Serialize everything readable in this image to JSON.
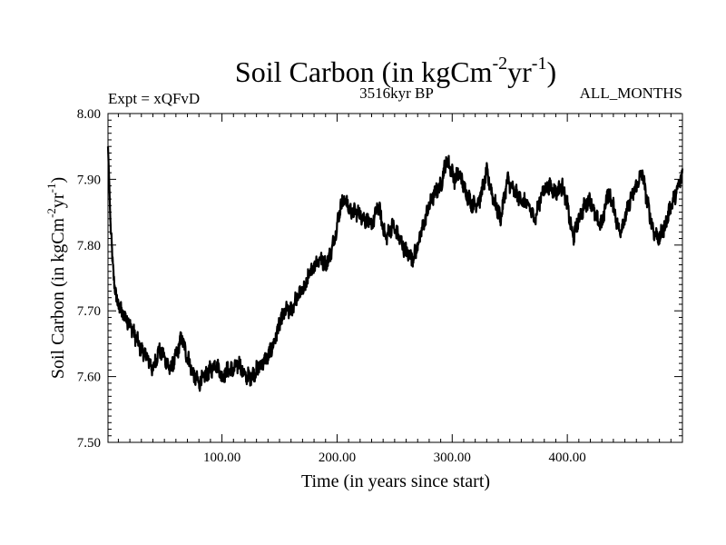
{
  "chart_data": {
    "type": "line",
    "title": "Soil Carbon (in kgCm",
    "title_sup1": "-2",
    "title_mid": "yr",
    "title_sup2": "-1",
    "title_end": ")",
    "left_annotation": "Expt = xQFvD",
    "center_annotation": "3516kyr BP",
    "right_annotation": "ALL_MONTHS",
    "xlabel": "Time (in years since start)",
    "ylabel": "Soil Carbon (in kgCm",
    "ylabel_sup1": "-2",
    "ylabel_mid": "yr",
    "ylabel_sup2": "-1",
    "ylabel_end": ")",
    "xlim": [
      1,
      500
    ],
    "ylim": [
      7.5,
      8.0
    ],
    "x_ticks": [
      100,
      200,
      300,
      400
    ],
    "x_tick_labels": [
      "100.00",
      "200.00",
      "300.00",
      "400.00"
    ],
    "y_ticks": [
      7.5,
      7.6,
      7.7,
      7.8,
      7.9,
      8.0
    ],
    "y_tick_labels": [
      "7.50",
      "7.60",
      "7.70",
      "7.80",
      "7.90",
      "8.00"
    ],
    "grid": false,
    "series": [
      {
        "name": "Soil Carbon",
        "color": "#000000",
        "x": [
          1,
          2,
          3,
          5,
          8,
          12,
          16,
          20,
          25,
          30,
          35,
          40,
          45,
          50,
          55,
          60,
          65,
          68,
          72,
          76,
          80,
          85,
          90,
          95,
          100,
          105,
          110,
          115,
          120,
          125,
          130,
          135,
          140,
          145,
          150,
          155,
          160,
          165,
          170,
          175,
          180,
          185,
          190,
          195,
          200,
          203,
          207,
          212,
          218,
          224,
          230,
          236,
          242,
          248,
          254,
          260,
          266,
          270,
          275,
          280,
          285,
          290,
          295,
          298,
          302,
          306,
          312,
          318,
          324,
          330,
          336,
          342,
          348,
          354,
          360,
          366,
          372,
          378,
          384,
          390,
          396,
          400,
          405,
          410,
          415,
          420,
          425,
          430,
          435,
          440,
          445,
          450,
          455,
          460,
          465,
          470,
          475,
          480,
          485,
          490,
          495,
          500
        ],
        "y": [
          7.95,
          7.9,
          7.84,
          7.77,
          7.72,
          7.7,
          7.69,
          7.68,
          7.66,
          7.64,
          7.63,
          7.61,
          7.64,
          7.63,
          7.61,
          7.63,
          7.66,
          7.64,
          7.62,
          7.6,
          7.59,
          7.6,
          7.61,
          7.62,
          7.6,
          7.61,
          7.61,
          7.62,
          7.6,
          7.6,
          7.61,
          7.62,
          7.63,
          7.65,
          7.68,
          7.7,
          7.7,
          7.72,
          7.73,
          7.75,
          7.77,
          7.78,
          7.77,
          7.79,
          7.83,
          7.86,
          7.87,
          7.85,
          7.85,
          7.84,
          7.83,
          7.86,
          7.81,
          7.83,
          7.81,
          7.79,
          7.78,
          7.8,
          7.83,
          7.86,
          7.88,
          7.89,
          7.93,
          7.92,
          7.9,
          7.91,
          7.88,
          7.86,
          7.87,
          7.91,
          7.87,
          7.84,
          7.9,
          7.88,
          7.87,
          7.86,
          7.84,
          7.88,
          7.89,
          7.88,
          7.89,
          7.86,
          7.81,
          7.84,
          7.86,
          7.87,
          7.84,
          7.83,
          7.88,
          7.86,
          7.82,
          7.84,
          7.87,
          7.89,
          7.91,
          7.86,
          7.82,
          7.81,
          7.83,
          7.86,
          7.88,
          7.91
        ]
      }
    ]
  }
}
